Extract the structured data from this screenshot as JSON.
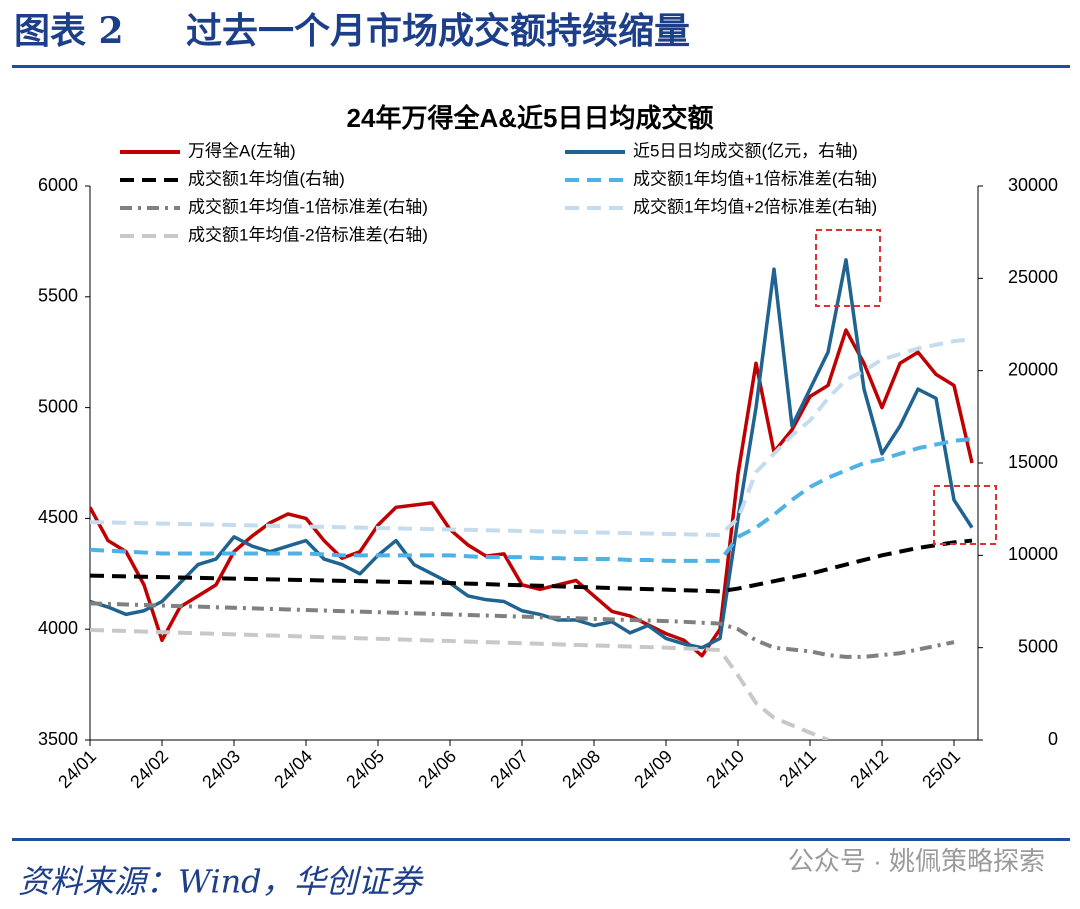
{
  "header": {
    "label": "图表 2",
    "title": "过去一个月市场成交额持续缩量"
  },
  "chart_data": {
    "type": "line",
    "title": "24年万得全A&近5日日均成交额",
    "categories": [
      "24/01",
      null,
      null,
      null,
      "24/02",
      null,
      null,
      null,
      "24/03",
      null,
      null,
      null,
      "24/04",
      null,
      null,
      null,
      "24/05",
      null,
      null,
      null,
      "24/06",
      null,
      null,
      null,
      "24/07",
      null,
      null,
      null,
      "24/08",
      null,
      null,
      null,
      "24/09",
      null,
      null,
      null,
      "24/10",
      null,
      null,
      null,
      "24/11",
      null,
      null,
      null,
      "24/12",
      null,
      null,
      null,
      "25/01",
      null
    ],
    "ylim": [
      3500,
      6000
    ],
    "yticks": [
      3500,
      4000,
      4500,
      5000,
      5500,
      6000
    ],
    "y2lim": [
      0,
      30000
    ],
    "y2ticks": [
      0,
      5000,
      10000,
      15000,
      20000,
      25000,
      30000
    ],
    "series": [
      {
        "name": "万得全A(左轴)",
        "color": "#c00000",
        "style": "solid",
        "values": [
          4550,
          4400,
          4350,
          4200,
          3950,
          4100,
          4150,
          4200,
          4350,
          4420,
          4480,
          4520,
          4500,
          4400,
          4320,
          4350,
          4470,
          4550,
          4560,
          4570,
          4450,
          4380,
          4330,
          4340,
          4200,
          4180,
          4200,
          4220,
          4150,
          4080,
          4060,
          4020,
          3980,
          3950,
          3880,
          4000,
          4700,
          5200,
          4800,
          4900,
          5050,
          5100,
          5350,
          5200,
          5000,
          5200,
          5250,
          5150,
          5100,
          4750
        ]
      },
      {
        "name": "近5日日均成交额(亿元，右轴)",
        "color": "#1f6390",
        "style": "solid",
        "axis": "y2",
        "values": [
          7500,
          7200,
          6800,
          7000,
          7500,
          8500,
          9500,
          9800,
          11000,
          10500,
          10200,
          10500,
          10800,
          9800,
          9500,
          9000,
          10000,
          10800,
          9500,
          9000,
          8500,
          7800,
          7600,
          7500,
          7000,
          6800,
          6500,
          6500,
          6200,
          6400,
          5800,
          6200,
          5500,
          5200,
          5000,
          5500,
          12000,
          18000,
          25500,
          17000,
          19000,
          21000,
          26000,
          19000,
          15500,
          17000,
          19000,
          18500,
          13000,
          11500
        ]
      },
      {
        "name": "成交额1年均值(右轴)",
        "color": "#000000",
        "style": "dash",
        "axis": "y2",
        "values": [
          8900,
          8880,
          8860,
          8840,
          8820,
          8800,
          8780,
          8760,
          8740,
          8720,
          8700,
          8680,
          8660,
          8640,
          8620,
          8600,
          8580,
          8560,
          8540,
          8520,
          8500,
          8470,
          8440,
          8410,
          8380,
          8350,
          8320,
          8290,
          8260,
          8230,
          8200,
          8170,
          8140,
          8110,
          8080,
          8050,
          8200,
          8400,
          8600,
          8800,
          9000,
          9250,
          9500,
          9750,
          10000,
          10200,
          10400,
          10550,
          10700,
          10800
        ]
      },
      {
        "name": "成交额1年均值+1倍标准差(右轴)",
        "color": "#4db3e6",
        "style": "dash",
        "axis": "y2",
        "values": [
          10300,
          10250,
          10200,
          10150,
          10100,
          10100,
          10100,
          10100,
          10100,
          10100,
          10100,
          10100,
          10100,
          10050,
          10000,
          10000,
          10000,
          10000,
          10000,
          10000,
          10000,
          9950,
          9900,
          9900,
          9900,
          9850,
          9850,
          9800,
          9800,
          9800,
          9750,
          9750,
          9700,
          9700,
          9700,
          9700,
          11000,
          11500,
          12200,
          13000,
          13700,
          14200,
          14600,
          15000,
          15200,
          15500,
          15800,
          16000,
          16200,
          16300
        ]
      },
      {
        "name": "成交额1年均值-1倍标准差(右轴)",
        "color": "#808080",
        "style": "dashdot",
        "axis": "y2",
        "values": [
          7400,
          7370,
          7340,
          7310,
          7280,
          7250,
          7220,
          7190,
          7160,
          7130,
          7100,
          7070,
          7040,
          7010,
          6980,
          6950,
          6920,
          6890,
          6860,
          6830,
          6800,
          6770,
          6740,
          6710,
          6680,
          6650,
          6620,
          6590,
          6560,
          6530,
          6500,
          6470,
          6440,
          6400,
          6350,
          6300,
          6000,
          5400,
          5000,
          4900,
          4800,
          4600,
          4500,
          4500,
          4600,
          4700,
          4900,
          5100,
          5300,
          null
        ]
      },
      {
        "name": "成交额1年均值+2倍标准差(右轴)",
        "color": "#c5dcef",
        "style": "dash",
        "axis": "y2",
        "values": [
          11800,
          11780,
          11760,
          11740,
          11720,
          11700,
          11680,
          11660,
          11640,
          11620,
          11600,
          11580,
          11560,
          11540,
          11520,
          11500,
          11480,
          11460,
          11440,
          11420,
          11400,
          11380,
          11360,
          11340,
          11320,
          11300,
          11280,
          11260,
          11240,
          11220,
          11200,
          11180,
          11160,
          11140,
          11120,
          11100,
          12000,
          14500,
          15500,
          16500,
          17300,
          18500,
          19500,
          20000,
          20600,
          20900,
          21200,
          21400,
          21600,
          21700
        ]
      },
      {
        "name": "成交额1年均值-2倍标准差(右轴)",
        "color": "#c8c8c8",
        "style": "dash",
        "axis": "y2",
        "values": [
          5960,
          5930,
          5900,
          5870,
          5840,
          5810,
          5780,
          5750,
          5720,
          5690,
          5660,
          5630,
          5600,
          5570,
          5540,
          5510,
          5480,
          5450,
          5420,
          5390,
          5360,
          5330,
          5300,
          5270,
          5240,
          5210,
          5180,
          5150,
          5120,
          5090,
          5060,
          5030,
          5000,
          4960,
          4920,
          4870,
          3500,
          2000,
          1200,
          800,
          400,
          0,
          null,
          null,
          null,
          null,
          null,
          null,
          null,
          null
        ]
      }
    ]
  },
  "footer": {
    "source": "资料来源：Wind，华创证券",
    "watermark": "公众号 · 姚佩策略探索"
  }
}
